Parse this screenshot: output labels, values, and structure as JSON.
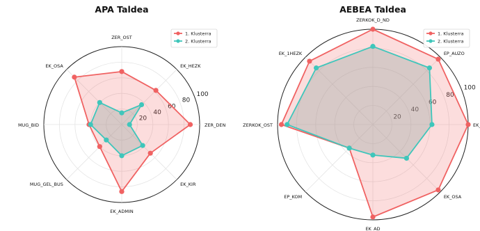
{
  "colors": {
    "cluster1": "#f06262",
    "cluster2": "#3fc6bb"
  },
  "chart_data": [
    {
      "type": "radar",
      "title": "APA Taldea",
      "axes": [
        "ZER_DEN",
        "EK_HEZK",
        "ZER_OST",
        "EK_OSA",
        "MUG_BID",
        "MUG_GEL_BUS",
        "EK_ADMIN",
        "EK_KIR"
      ],
      "rlim": [
        0,
        100
      ],
      "rticks": [
        20,
        40,
        60,
        80,
        100
      ],
      "series": [
        {
          "name": "1. Klusterra",
          "values": [
            88,
            62,
            68,
            86,
            42,
            40,
            86,
            52
          ]
        },
        {
          "name": "2. Klusterra",
          "values": [
            10,
            36,
            15,
            40,
            40,
            28,
            40,
            38
          ]
        }
      ],
      "legend": "top-right",
      "grid": true
    },
    {
      "type": "radar",
      "title": "AEBEA Taldea",
      "axes": [
        "EK_ADMIN",
        "EP_AUZO",
        "ZERKOK_D_ND",
        "EK_1HEZK",
        "ZERKOK_OST",
        "EP_KOM",
        "EK_AD",
        "EK_OSA"
      ],
      "rlim": [
        0,
        100
      ],
      "rticks": [
        20,
        40,
        60,
        80,
        100
      ],
      "series": [
        {
          "name": "1. Klusterra",
          "values": [
            100,
            97,
            100,
            94,
            96,
            35,
            97,
            97
          ]
        },
        {
          "name": "2. Klusterra",
          "values": [
            62,
            84,
            82,
            84,
            90,
            35,
            32,
            50
          ]
        }
      ],
      "legend": "top-right",
      "grid": true
    }
  ]
}
